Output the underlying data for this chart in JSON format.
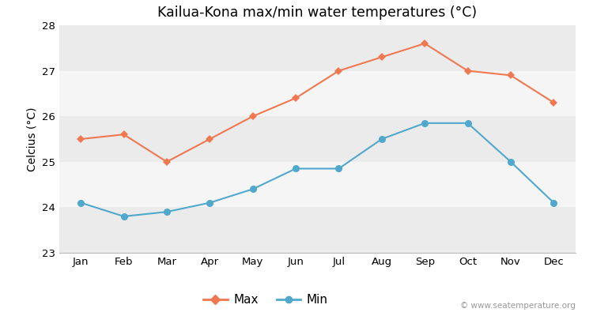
{
  "title": "Kailua-Kona max/min water temperatures (°C)",
  "ylabel": "Celcius (°C)",
  "months": [
    "Jan",
    "Feb",
    "Mar",
    "Apr",
    "May",
    "Jun",
    "Jul",
    "Aug",
    "Sep",
    "Oct",
    "Nov",
    "Dec"
  ],
  "max_values": [
    25.5,
    25.6,
    25.0,
    25.5,
    26.0,
    26.4,
    27.0,
    27.3,
    27.6,
    27.0,
    26.9,
    26.3
  ],
  "min_values": [
    24.1,
    23.8,
    23.9,
    24.1,
    24.4,
    24.85,
    24.85,
    25.5,
    25.85,
    25.85,
    25.0,
    24.1
  ],
  "max_color": "#f07850",
  "min_color": "#50a8cc",
  "bg_color": "#ffffff",
  "plot_bg_color": "#ffffff",
  "band_colors": [
    "#ebebeb",
    "#f5f5f5"
  ],
  "ylim_min": 23,
  "ylim_max": 28,
  "yticks": [
    23,
    24,
    25,
    26,
    27,
    28
  ],
  "watermark": "© www.seatemperature.org",
  "legend_max": "Max",
  "legend_min": "Min"
}
